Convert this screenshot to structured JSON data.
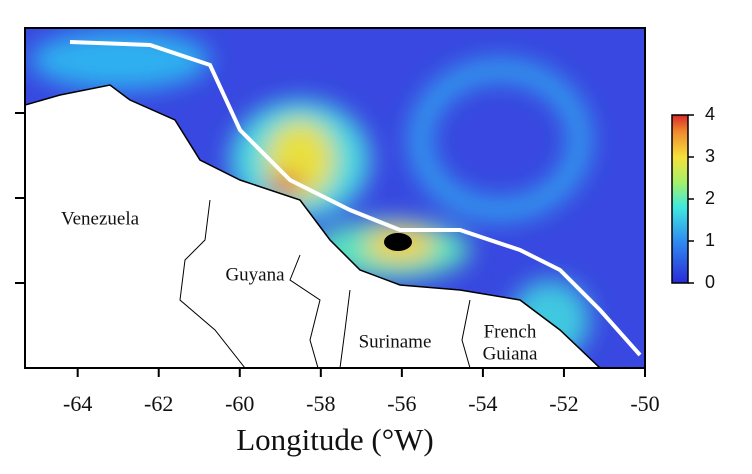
{
  "chart_data": {
    "type": "map",
    "xlabel": "Longitude (°W)",
    "xlim": [
      -65.3,
      -50
    ],
    "xticks": [
      -64,
      -62,
      -60,
      -58,
      -56,
      -54,
      -52,
      -50
    ],
    "colorbar": {
      "lim": [
        0,
        4
      ],
      "ticks": [
        0,
        1,
        2,
        3,
        4
      ]
    },
    "places": [
      "Venezuela",
      "Guyana",
      "Suriname",
      "French",
      "Guiana"
    ]
  }
}
